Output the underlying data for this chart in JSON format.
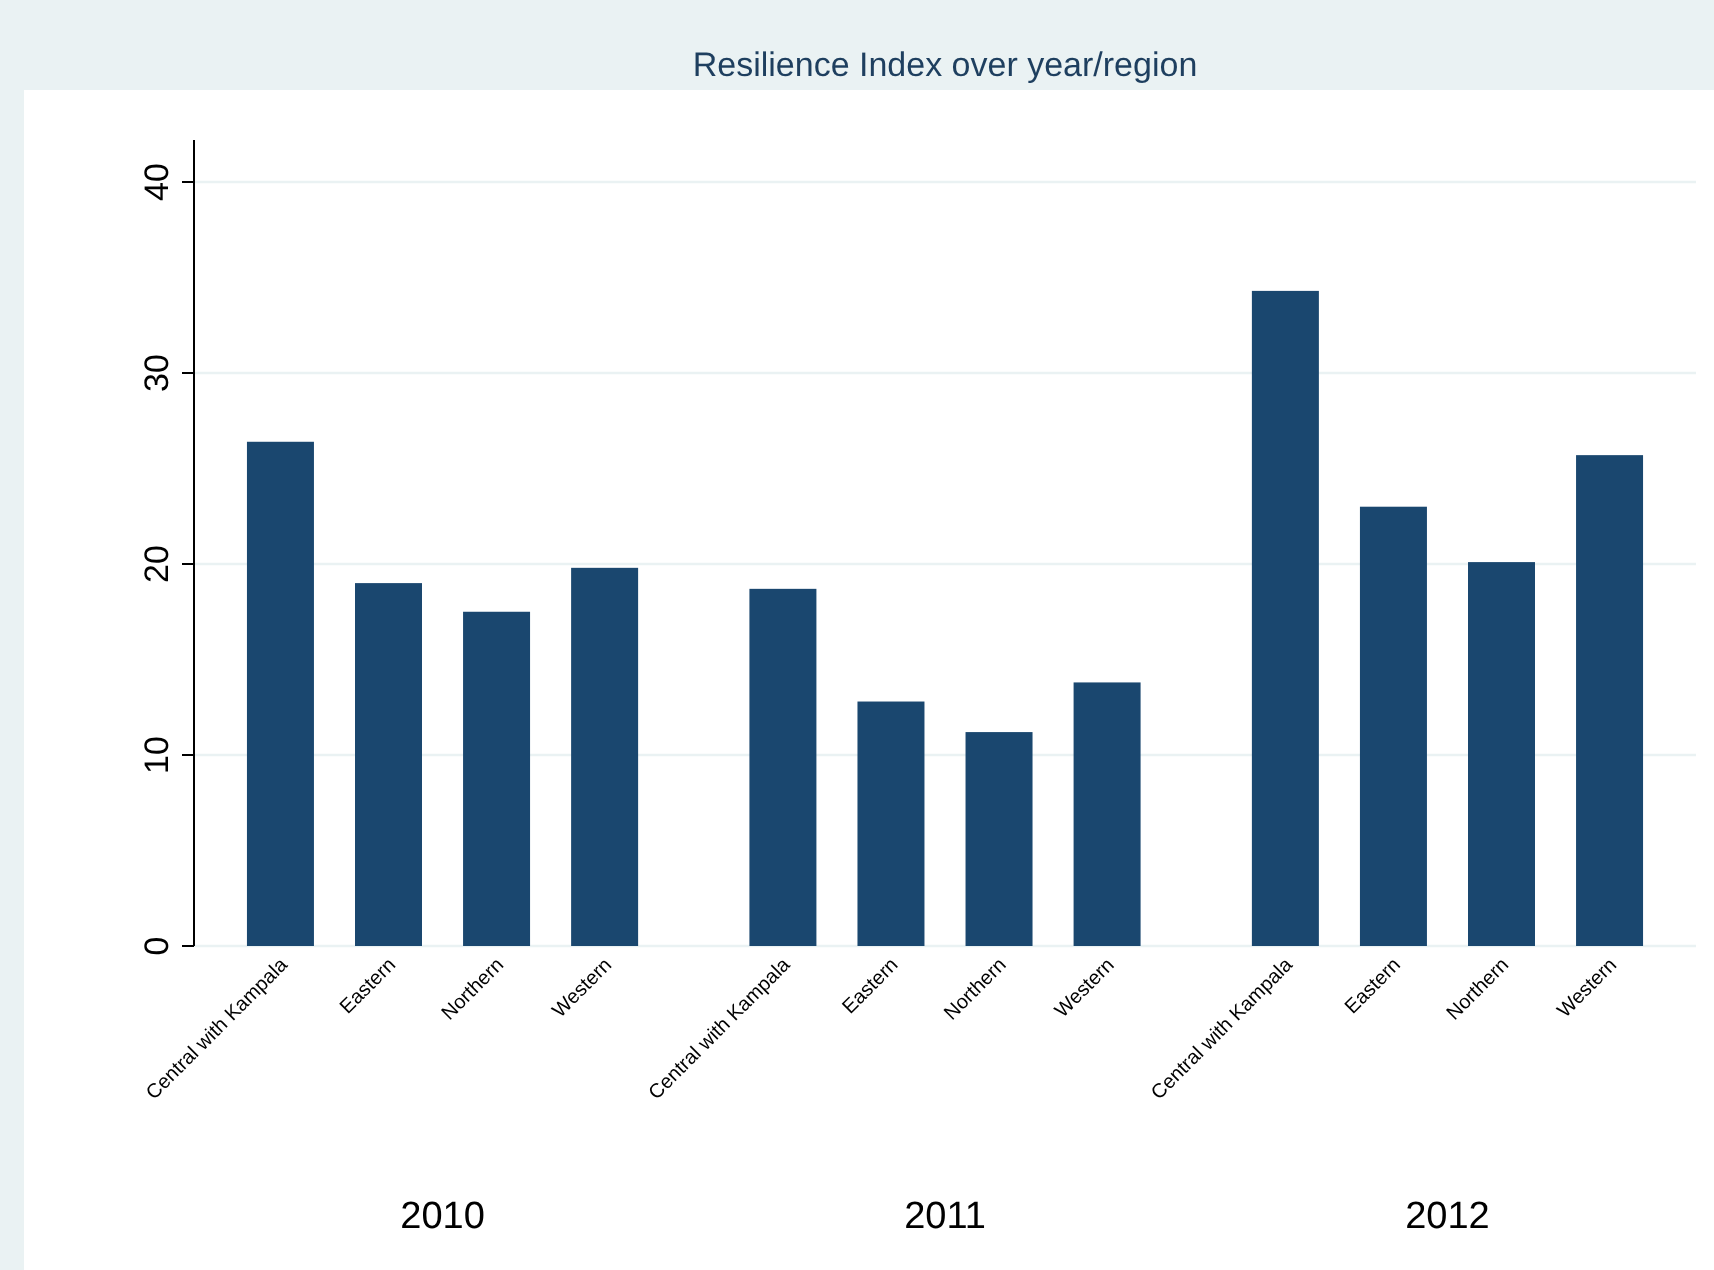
{
  "chart_data": {
    "type": "bar",
    "title": "Resilience Index over year/region",
    "categories": [
      "Central with Kampala",
      "Eastern",
      "Northern",
      "Western",
      "Central with Kampala",
      "Eastern",
      "Northern",
      "Western",
      "Central with Kampala",
      "Eastern",
      "Northern",
      "Western"
    ],
    "values": [
      26.4,
      19.0,
      17.5,
      19.8,
      18.7,
      12.8,
      11.2,
      13.8,
      34.3,
      23.0,
      20.1,
      25.7
    ],
    "color": "#1a476f",
    "ylim": [
      0,
      42.2
    ],
    "yticks": [
      0,
      10,
      20,
      30,
      40
    ],
    "grid": "y",
    "annotations": [
      "2010",
      "2011",
      "2012"
    ]
  }
}
